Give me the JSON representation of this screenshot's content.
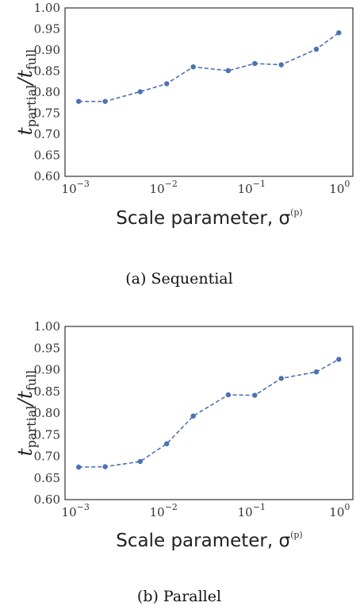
{
  "chart_data": [
    {
      "type": "line",
      "caption": "(a) Sequential",
      "xlabel": "Scale parameter, σ",
      "xlabel_superscript": "(p)",
      "ylabel": "t",
      "ylabel_sub1": "partial",
      "ylabel_sep": "/",
      "ylabel_sub2": "full",
      "xscale": "log",
      "xlim": [
        0.0007,
        1.3
      ],
      "ylim": [
        0.6,
        1.0
      ],
      "yticks": [
        "0.60",
        "0.65",
        "0.70",
        "0.75",
        "0.80",
        "0.85",
        "0.90",
        "0.95",
        "1.00"
      ],
      "xticks": [
        {
          "base": "10",
          "exp": "−3"
        },
        {
          "base": "10",
          "exp": "−2"
        },
        {
          "base": "10",
          "exp": "−1"
        },
        {
          "base": "10",
          "exp": "0"
        }
      ],
      "x": [
        0.001,
        0.002,
        0.005,
        0.01,
        0.02,
        0.05,
        0.1,
        0.2,
        0.5,
        0.9
      ],
      "values": [
        0.778,
        0.778,
        0.801,
        0.82,
        0.86,
        0.851,
        0.868,
        0.865,
        0.902,
        0.941
      ],
      "color": "#4c72b0"
    },
    {
      "type": "line",
      "caption": "(b) Parallel",
      "xlabel": "Scale parameter, σ",
      "xlabel_superscript": "(p)",
      "ylabel": "t",
      "ylabel_sub1": "partial",
      "ylabel_sep": "/",
      "ylabel_sub2": "full",
      "xscale": "log",
      "xlim": [
        0.0007,
        1.3
      ],
      "ylim": [
        0.6,
        1.0
      ],
      "yticks": [
        "0.60",
        "0.65",
        "0.70",
        "0.75",
        "0.80",
        "0.85",
        "0.90",
        "0.95",
        "1.00"
      ],
      "xticks": [
        {
          "base": "10",
          "exp": "−3"
        },
        {
          "base": "10",
          "exp": "−2"
        },
        {
          "base": "10",
          "exp": "−1"
        },
        {
          "base": "10",
          "exp": "0"
        }
      ],
      "x": [
        0.001,
        0.002,
        0.005,
        0.01,
        0.02,
        0.05,
        0.1,
        0.2,
        0.5,
        0.9
      ],
      "values": [
        0.675,
        0.676,
        0.688,
        0.729,
        0.793,
        0.842,
        0.841,
        0.88,
        0.895,
        0.924
      ],
      "color": "#4c72b0"
    }
  ]
}
